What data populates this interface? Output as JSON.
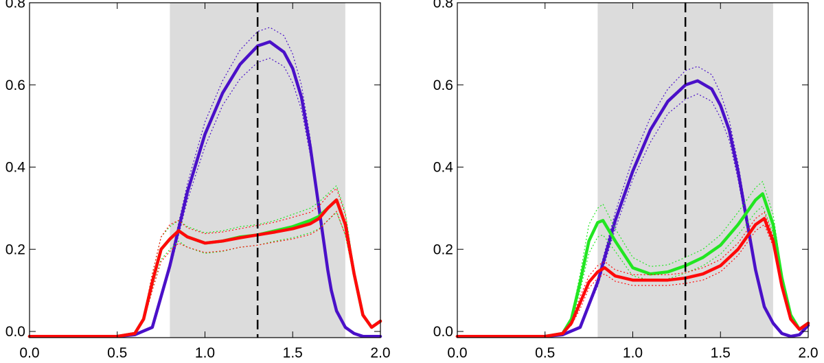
{
  "chart_data": [
    {
      "type": "line",
      "panel": "left",
      "xlim": [
        0.0,
        2.0
      ],
      "ylim": [
        -0.015,
        0.8
      ],
      "xticks": [
        0.0,
        0.5,
        1.0,
        1.5,
        2.0
      ],
      "xtick_labels": [
        "0.0",
        "0.5",
        "1.0",
        "1.5",
        "2.0"
      ],
      "yticks": [
        0.0,
        0.2,
        0.4,
        0.6,
        0.8
      ],
      "ytick_labels": [
        "0.0",
        "0.2",
        "0.4",
        "0.6",
        "0.8"
      ],
      "shaded_region": {
        "x": [
          0.8,
          1.8
        ],
        "color": "#dcdcdc"
      },
      "vline": {
        "x": 1.3,
        "style": "dashed",
        "color": "#000000"
      },
      "grid": false,
      "series": [
        {
          "color": "#4a10c8",
          "x": [
            0.0,
            0.5,
            0.6,
            0.7,
            0.8,
            0.9,
            1.0,
            1.1,
            1.2,
            1.3,
            1.37,
            1.45,
            1.5,
            1.55,
            1.6,
            1.65,
            1.7,
            1.72,
            1.75,
            1.8,
            1.85,
            1.9,
            1.95,
            2.0
          ],
          "values": [
            -0.012,
            -0.012,
            -0.008,
            0.01,
            0.16,
            0.34,
            0.48,
            0.58,
            0.65,
            0.695,
            0.705,
            0.68,
            0.64,
            0.57,
            0.45,
            0.3,
            0.15,
            0.1,
            0.05,
            0.01,
            -0.005,
            -0.012,
            -0.012,
            -0.012
          ],
          "band_upper": [
            -0.012,
            -0.012,
            -0.008,
            0.01,
            0.17,
            0.36,
            0.51,
            0.61,
            0.685,
            0.73,
            0.74,
            0.72,
            0.675,
            0.6,
            0.47,
            0.31,
            0.16,
            0.105,
            0.05,
            0.01,
            -0.005,
            -0.012,
            -0.012,
            -0.012
          ],
          "band_lower": [
            -0.012,
            -0.012,
            -0.008,
            0.01,
            0.15,
            0.32,
            0.45,
            0.55,
            0.615,
            0.655,
            0.665,
            0.645,
            0.605,
            0.54,
            0.43,
            0.29,
            0.14,
            0.095,
            0.05,
            0.01,
            -0.005,
            -0.012,
            -0.012,
            -0.012
          ]
        },
        {
          "color": "#22e622",
          "x": [
            0.0,
            0.5,
            0.6,
            0.65,
            0.7,
            0.75,
            0.8,
            0.85,
            0.9,
            1.0,
            1.1,
            1.2,
            1.3,
            1.4,
            1.5,
            1.6,
            1.65,
            1.7,
            1.75,
            1.8,
            1.85,
            1.9,
            1.95,
            2.0
          ],
          "values": [
            -0.012,
            -0.012,
            -0.005,
            0.03,
            0.12,
            0.2,
            0.225,
            0.245,
            0.23,
            0.215,
            0.22,
            0.23,
            0.235,
            0.245,
            0.255,
            0.27,
            0.28,
            0.3,
            0.32,
            0.26,
            0.14,
            0.04,
            0.01,
            0.025
          ],
          "band_upper": [
            -0.012,
            -0.012,
            -0.005,
            0.035,
            0.14,
            0.23,
            0.255,
            0.27,
            0.255,
            0.24,
            0.245,
            0.255,
            0.26,
            0.27,
            0.285,
            0.3,
            0.315,
            0.335,
            0.355,
            0.29,
            0.15,
            0.045,
            0.012,
            0.028
          ],
          "band_lower": [
            -0.012,
            -0.012,
            -0.005,
            0.025,
            0.1,
            0.175,
            0.2,
            0.22,
            0.205,
            0.19,
            0.195,
            0.205,
            0.21,
            0.22,
            0.228,
            0.24,
            0.25,
            0.27,
            0.29,
            0.235,
            0.13,
            0.035,
            0.008,
            0.022
          ]
        },
        {
          "color": "#ff0a0a",
          "x": [
            0.0,
            0.5,
            0.6,
            0.65,
            0.7,
            0.75,
            0.8,
            0.85,
            0.9,
            1.0,
            1.1,
            1.2,
            1.3,
            1.4,
            1.5,
            1.6,
            1.65,
            1.7,
            1.75,
            1.8,
            1.85,
            1.9,
            1.95,
            2.0
          ],
          "values": [
            -0.012,
            -0.012,
            -0.005,
            0.03,
            0.12,
            0.2,
            0.225,
            0.245,
            0.23,
            0.215,
            0.22,
            0.228,
            0.235,
            0.242,
            0.25,
            0.262,
            0.275,
            0.3,
            0.32,
            0.26,
            0.14,
            0.04,
            0.01,
            0.025
          ],
          "band_upper": [
            -0.012,
            -0.012,
            -0.005,
            0.035,
            0.14,
            0.23,
            0.26,
            0.27,
            0.252,
            0.238,
            0.242,
            0.25,
            0.258,
            0.266,
            0.278,
            0.29,
            0.305,
            0.33,
            0.348,
            0.285,
            0.15,
            0.045,
            0.012,
            0.028
          ],
          "band_lower": [
            -0.012,
            -0.012,
            -0.005,
            0.025,
            0.1,
            0.17,
            0.195,
            0.215,
            0.205,
            0.192,
            0.196,
            0.205,
            0.21,
            0.218,
            0.225,
            0.236,
            0.248,
            0.27,
            0.292,
            0.235,
            0.13,
            0.035,
            0.008,
            0.022
          ]
        }
      ]
    },
    {
      "type": "line",
      "panel": "right",
      "xlim": [
        0.0,
        2.0
      ],
      "ylim": [
        -0.015,
        0.8
      ],
      "xticks": [
        0.0,
        0.5,
        1.0,
        1.5,
        2.0
      ],
      "xtick_labels": [
        "0.0",
        "0.5",
        "1.0",
        "1.5",
        "2.0"
      ],
      "yticks": [
        0.0,
        0.2,
        0.4,
        0.6,
        0.8
      ],
      "ytick_labels": [
        "0.0",
        "0.2",
        "0.4",
        "0.6",
        "0.8"
      ],
      "shaded_region": {
        "x": [
          0.8,
          1.8
        ],
        "color": "#dcdcdc"
      },
      "vline": {
        "x": 1.3,
        "style": "dashed",
        "color": "#000000"
      },
      "grid": false,
      "series": [
        {
          "color": "#4a10c8",
          "x": [
            0.0,
            0.5,
            0.6,
            0.7,
            0.8,
            0.9,
            1.0,
            1.1,
            1.2,
            1.3,
            1.37,
            1.45,
            1.5,
            1.55,
            1.6,
            1.65,
            1.7,
            1.75,
            1.8,
            1.85,
            1.9,
            1.95,
            2.0
          ],
          "values": [
            -0.012,
            -0.012,
            -0.008,
            0.01,
            0.12,
            0.27,
            0.39,
            0.49,
            0.56,
            0.6,
            0.61,
            0.59,
            0.55,
            0.49,
            0.39,
            0.27,
            0.15,
            0.06,
            0.02,
            -0.005,
            -0.012,
            -0.008,
            0.015
          ],
          "band_upper": [
            -0.012,
            -0.012,
            -0.008,
            0.01,
            0.13,
            0.29,
            0.42,
            0.52,
            0.59,
            0.635,
            0.645,
            0.625,
            0.58,
            0.515,
            0.41,
            0.285,
            0.16,
            0.065,
            0.02,
            -0.005,
            -0.012,
            -0.008,
            0.015
          ],
          "band_lower": [
            -0.012,
            -0.012,
            -0.008,
            0.01,
            0.11,
            0.25,
            0.37,
            0.46,
            0.53,
            0.565,
            0.578,
            0.56,
            0.52,
            0.465,
            0.37,
            0.255,
            0.14,
            0.055,
            0.02,
            -0.005,
            -0.012,
            -0.008,
            0.015
          ]
        },
        {
          "color": "#22e622",
          "x": [
            0.0,
            0.5,
            0.6,
            0.65,
            0.7,
            0.75,
            0.8,
            0.83,
            0.9,
            1.0,
            1.1,
            1.2,
            1.3,
            1.4,
            1.5,
            1.6,
            1.65,
            1.7,
            1.74,
            1.8,
            1.85,
            1.9,
            1.95,
            2.0
          ],
          "values": [
            -0.012,
            -0.012,
            -0.005,
            0.03,
            0.12,
            0.22,
            0.265,
            0.27,
            0.22,
            0.155,
            0.14,
            0.145,
            0.16,
            0.18,
            0.21,
            0.26,
            0.29,
            0.32,
            0.335,
            0.26,
            0.13,
            0.04,
            0.005,
            0.02
          ],
          "band_upper": [
            -0.012,
            -0.012,
            -0.005,
            0.035,
            0.14,
            0.26,
            0.3,
            0.31,
            0.25,
            0.18,
            0.158,
            0.162,
            0.18,
            0.2,
            0.235,
            0.29,
            0.32,
            0.35,
            0.365,
            0.285,
            0.14,
            0.045,
            0.008,
            0.022
          ],
          "band_lower": [
            -0.012,
            -0.012,
            -0.005,
            0.025,
            0.1,
            0.19,
            0.23,
            0.235,
            0.195,
            0.135,
            0.125,
            0.128,
            0.142,
            0.16,
            0.188,
            0.235,
            0.262,
            0.29,
            0.305,
            0.24,
            0.12,
            0.035,
            0.003,
            0.018
          ]
        },
        {
          "color": "#ff0a0a",
          "x": [
            0.0,
            0.5,
            0.6,
            0.65,
            0.7,
            0.75,
            0.8,
            0.84,
            0.9,
            1.0,
            1.1,
            1.2,
            1.3,
            1.4,
            1.5,
            1.6,
            1.65,
            1.7,
            1.75,
            1.8,
            1.85,
            1.9,
            1.95,
            2.0
          ],
          "values": [
            -0.012,
            -0.012,
            -0.005,
            0.02,
            0.07,
            0.12,
            0.145,
            0.155,
            0.135,
            0.125,
            0.125,
            0.125,
            0.13,
            0.14,
            0.16,
            0.2,
            0.23,
            0.26,
            0.275,
            0.22,
            0.11,
            0.03,
            0.005,
            0.02
          ],
          "band_upper": [
            -0.012,
            -0.012,
            -0.005,
            0.025,
            0.085,
            0.135,
            0.16,
            0.17,
            0.15,
            0.138,
            0.138,
            0.138,
            0.143,
            0.155,
            0.175,
            0.215,
            0.245,
            0.275,
            0.29,
            0.232,
            0.115,
            0.032,
            0.006,
            0.021
          ],
          "band_lower": [
            -0.012,
            -0.012,
            -0.005,
            0.015,
            0.055,
            0.105,
            0.13,
            0.14,
            0.122,
            0.112,
            0.112,
            0.112,
            0.117,
            0.125,
            0.145,
            0.185,
            0.215,
            0.245,
            0.26,
            0.208,
            0.105,
            0.028,
            0.004,
            0.019
          ]
        }
      ]
    }
  ]
}
